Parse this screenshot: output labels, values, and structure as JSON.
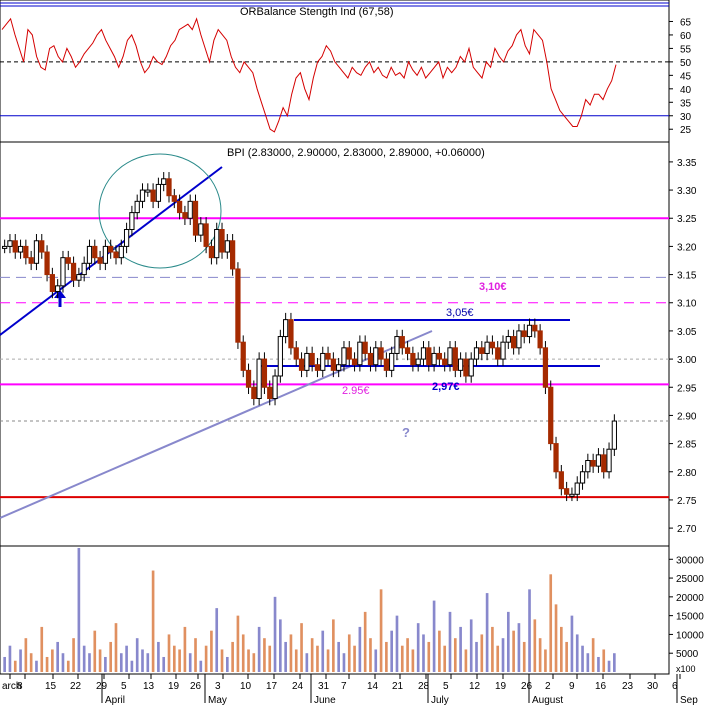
{
  "chart_data": [
    {
      "type": "line",
      "panel": "indicator",
      "title": "ORBalance Stength Ind (67,58)",
      "yticks": [
        25,
        30,
        35,
        40,
        45,
        50,
        55,
        60,
        65
      ],
      "ylim": [
        21,
        70
      ],
      "reference_lines": [
        {
          "value": 30,
          "color": "#0000cc"
        },
        {
          "value": 50,
          "color": "#000000",
          "style": "dashed"
        }
      ],
      "series": [
        {
          "color": "#d40000",
          "values": [
            62,
            64,
            66,
            60,
            55,
            50,
            62,
            60,
            52,
            48,
            47,
            55,
            56,
            52,
            50,
            55,
            52,
            48,
            50,
            53,
            55,
            57,
            60,
            62,
            58,
            55,
            52,
            48,
            52,
            58,
            60,
            56,
            50,
            46,
            48,
            52,
            50,
            49,
            52,
            56,
            58,
            62,
            63,
            64,
            62,
            66,
            60,
            55,
            50,
            58,
            62,
            60,
            58,
            52,
            48,
            46,
            50,
            48,
            46,
            40,
            35,
            30,
            25,
            24,
            28,
            33,
            30,
            38,
            44,
            46,
            40,
            36,
            44,
            50,
            52,
            56,
            54,
            50,
            48,
            46,
            44,
            48,
            46,
            45,
            48,
            50,
            46,
            48,
            45,
            44,
            48,
            45,
            46,
            44,
            50,
            47,
            45,
            48,
            44,
            46,
            48,
            50,
            44,
            48,
            46,
            48,
            52,
            50,
            55,
            48,
            46,
            44,
            50,
            48,
            55,
            52,
            50,
            54,
            56,
            60,
            62,
            56,
            53,
            62,
            60,
            58,
            50,
            40,
            36,
            32,
            30,
            28,
            26,
            26,
            30,
            36,
            34,
            38,
            38,
            36,
            40,
            43,
            49
          ]
        }
      ]
    },
    {
      "type": "candlestick",
      "panel": "price",
      "title": "BPI (2.83000, 2.90000, 2.83000, 2.89000, +0.06000)",
      "yticks": [
        2.7,
        2.75,
        2.8,
        2.85,
        2.9,
        2.95,
        3.0,
        3.05,
        3.1,
        3.15,
        3.2,
        3.25,
        3.3,
        3.35
      ],
      "ylim": [
        2.67,
        3.38
      ],
      "price_levels": [
        {
          "value": 3.25,
          "color": "#ff00ff",
          "style": "solid"
        },
        {
          "value": 3.1,
          "color": "#ff00ff",
          "style": "dashed"
        },
        {
          "value": 3.145,
          "color": "#8888cc",
          "style": "dashed"
        },
        {
          "value": 2.955,
          "color": "#ff00ff",
          "style": "solid"
        },
        {
          "value": 2.755,
          "color": "#dd0000",
          "style": "solid"
        },
        {
          "value": 2.89,
          "color": "#888888",
          "style": "dotted"
        },
        {
          "value": 3.0,
          "color": "#aaaaaa",
          "style": "dotted"
        }
      ],
      "annotations": [
        {
          "text": "3,10€",
          "color": "#e020e0"
        },
        {
          "text": "3,05€",
          "color": "#0000aa"
        },
        {
          "text": "2,97€",
          "color": "#0000cc"
        },
        {
          "text": "2.95€",
          "color": "#e020e0"
        },
        {
          "text": "?",
          "color": "#8888cc"
        }
      ],
      "closes": [
        3.2,
        3.21,
        3.19,
        3.2,
        3.18,
        3.17,
        3.21,
        3.19,
        3.15,
        3.12,
        3.13,
        3.18,
        3.17,
        3.14,
        3.15,
        3.17,
        3.2,
        3.18,
        3.17,
        3.2,
        3.19,
        3.18,
        3.2,
        3.23,
        3.26,
        3.28,
        3.3,
        3.3,
        3.28,
        3.31,
        3.32,
        3.29,
        3.28,
        3.26,
        3.25,
        3.28,
        3.22,
        3.24,
        3.2,
        3.18,
        3.23,
        3.19,
        3.21,
        3.16,
        3.03,
        2.98,
        2.95,
        2.93,
        3.0,
        2.95,
        2.93,
        2.97,
        3.04,
        3.07,
        3.02,
        3.0,
        2.98,
        3.01,
        2.99,
        2.98,
        3.01,
        3.0,
        2.98,
        2.99,
        3.02,
        3.0,
        2.99,
        3.03,
        3.01,
        2.99,
        3.02,
        3.0,
        2.98,
        3.01,
        3.04,
        3.02,
        3.01,
        2.99,
        3.0,
        3.02,
        2.99,
        3.01,
        3.0,
        2.99,
        3.02,
        2.98,
        3.0,
        2.97,
        3.0,
        3.02,
        3.01,
        3.03,
        3.02,
        3.0,
        3.03,
        3.04,
        3.02,
        3.05,
        3.04,
        3.06,
        3.05,
        3.02,
        2.95,
        2.85,
        2.8,
        2.77,
        2.76,
        2.76,
        2.78,
        2.8,
        2.82,
        2.81,
        2.83,
        2.8,
        2.84,
        2.89
      ]
    },
    {
      "type": "bar",
      "panel": "volume",
      "yticks": [
        5000,
        10000,
        15000,
        20000,
        25000,
        30000
      ],
      "ylim": [
        0,
        33000
      ],
      "units_label": "x100",
      "values": [
        4000,
        7000,
        3000,
        6000,
        9000,
        5000,
        3000,
        12000,
        4000,
        6000,
        8000,
        5000,
        3000,
        9000,
        33000,
        7000,
        5000,
        11000,
        6000,
        4000,
        8000,
        13000,
        5000,
        7000,
        3000,
        9000,
        6000,
        5000,
        27000,
        8000,
        4000,
        10000,
        7000,
        6000,
        12000,
        5000,
        9000,
        3000,
        7000,
        11000,
        17000,
        6000,
        4000,
        8000,
        15000,
        10000,
        6000,
        5000,
        12000,
        9000,
        7000,
        20000,
        14000,
        8000,
        10000,
        6000,
        13000,
        5000,
        9000,
        7000,
        11000,
        6000,
        14000,
        8000,
        5000,
        10000,
        7000,
        12000,
        16000,
        9000,
        6000,
        22000,
        8000,
        11000,
        15000,
        7000,
        9000,
        6000,
        13000,
        10000,
        8000,
        19000,
        11000,
        7000,
        16000,
        9000,
        12000,
        6000,
        14000,
        8000,
        10000,
        21000,
        12000,
        7000,
        9000,
        16000,
        11000,
        13000,
        8000,
        22000,
        14000,
        9000,
        6000,
        26000,
        18000,
        12000,
        8000,
        15000,
        10000,
        7000,
        5000,
        9000,
        4000,
        6000,
        3000,
        5000
      ]
    }
  ],
  "x_axis": {
    "labels": [
      "arch",
      "8",
      "15",
      "22",
      "29",
      "5",
      "13",
      "19",
      "26",
      "3",
      "10",
      "17",
      "24",
      "31",
      "7",
      "14",
      "21",
      "28",
      "5",
      "12",
      "19",
      "26",
      "2",
      "9",
      "16",
      "23",
      "30",
      "6"
    ],
    "month_labels": [
      "April",
      "May",
      "June",
      "July",
      "August",
      "Sep"
    ]
  },
  "colors": {
    "up_candle": "#ffffff",
    "down_candle": "#a52a00",
    "volume_up": "#e09060",
    "volume_down": "#8888cc",
    "frame": "#000000"
  }
}
